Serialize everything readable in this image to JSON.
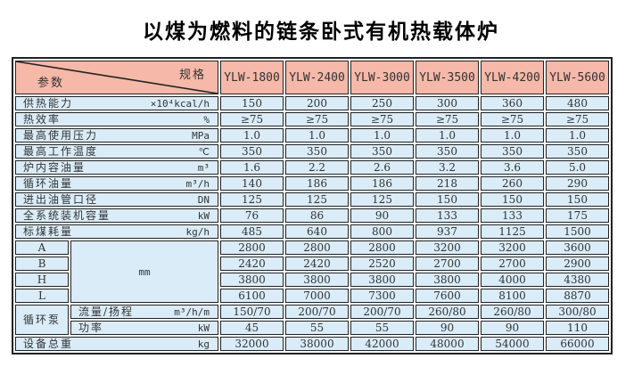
{
  "title": "以煤为燃料的链条卧式有机热载体炉",
  "colors": {
    "header_bg": "#f5b8a9",
    "body_bg": "#d9ecf8",
    "border": "#222222",
    "page_bg": "#ffffff"
  },
  "table": {
    "corner": {
      "spec_label": "规格",
      "param_label": "参数"
    },
    "models": [
      "YLW-1800",
      "YLW-2400",
      "YLW-3000",
      "YLW-3500",
      "YLW-4200",
      "YLW-5600"
    ],
    "dim_group_unit": "mm",
    "pump_group_label": "循环泵",
    "rows": [
      {
        "kind": "param",
        "label": "供热能力",
        "unit": "×10⁴kcal/h",
        "values": [
          "150",
          "200",
          "250",
          "300",
          "360",
          "480"
        ]
      },
      {
        "kind": "param",
        "label": "热效率",
        "unit": "%",
        "values": [
          "≥75",
          "≥75",
          "≥75",
          "≥75",
          "≥75",
          "≥75"
        ]
      },
      {
        "kind": "param",
        "label": "最高使用压力",
        "unit": "MPa",
        "values": [
          "1.0",
          "1.0",
          "1.0",
          "1.0",
          "1.0",
          "1.0"
        ]
      },
      {
        "kind": "param",
        "label": "最高工作温度",
        "unit": "℃",
        "values": [
          "350",
          "350",
          "350",
          "350",
          "350",
          "350"
        ]
      },
      {
        "kind": "param",
        "label": "炉内容油量",
        "unit": "m³",
        "values": [
          "1.6",
          "2.2",
          "2.6",
          "3.2",
          "3.6",
          "5.0"
        ]
      },
      {
        "kind": "param",
        "label": "循环油量",
        "unit": "m³/h",
        "values": [
          "140",
          "186",
          "186",
          "218",
          "260",
          "290"
        ]
      },
      {
        "kind": "param",
        "label": "进出油管口径",
        "unit": "DN",
        "values": [
          "125",
          "125",
          "125",
          "150",
          "150",
          "150"
        ]
      },
      {
        "kind": "param",
        "label": "全系统装机容量",
        "unit": "kW",
        "values": [
          "76",
          "86",
          "90",
          "133",
          "133",
          "175"
        ]
      },
      {
        "kind": "param",
        "label": "标煤耗量",
        "unit": "kg/h",
        "values": [
          "485",
          "640",
          "800",
          "937",
          "1125",
          "1500"
        ]
      },
      {
        "kind": "dim",
        "label": "A",
        "values": [
          "2800",
          "2800",
          "2800",
          "3200",
          "3200",
          "3600"
        ]
      },
      {
        "kind": "dim",
        "label": "B",
        "values": [
          "2420",
          "2420",
          "2520",
          "2700",
          "2700",
          "2900"
        ]
      },
      {
        "kind": "dim",
        "label": "H",
        "values": [
          "3800",
          "3800",
          "3800",
          "3800",
          "4000",
          "4380"
        ]
      },
      {
        "kind": "dim",
        "label": "L",
        "values": [
          "6100",
          "7000",
          "7300",
          "7600",
          "8100",
          "8870"
        ]
      },
      {
        "kind": "pump",
        "label": "流量/扬程",
        "unit": "m³/h/m",
        "values": [
          "150/70",
          "200/70",
          "200/70",
          "260/80",
          "260/80",
          "300/80"
        ]
      },
      {
        "kind": "pump",
        "label": "功率",
        "unit": "kW",
        "values": [
          "45",
          "55",
          "55",
          "90",
          "90",
          "110"
        ]
      },
      {
        "kind": "param",
        "label": "设备总重",
        "unit": "kg",
        "values": [
          "32000",
          "38000",
          "42000",
          "48000",
          "54000",
          "66000"
        ]
      }
    ]
  }
}
